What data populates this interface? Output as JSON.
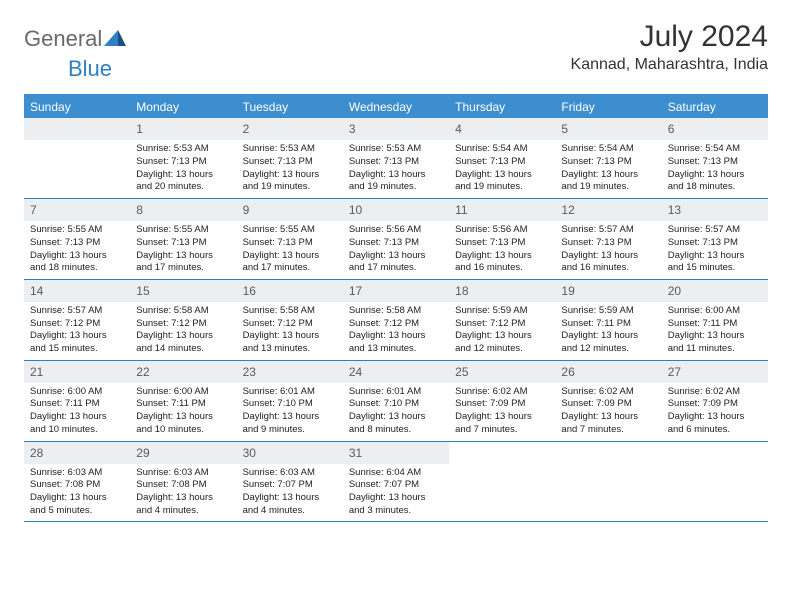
{
  "logo": {
    "text_part1": "General",
    "text_part2": "Blue"
  },
  "title": "July 2024",
  "subtitle": "Kannad, Maharashtra, India",
  "colors": {
    "header_bg": "#3c8ecf",
    "header_text": "#ffffff",
    "daynum_bg": "#eceff1",
    "border": "#2f7fc2",
    "text": "#222222",
    "logo_gray": "#6a6a6a",
    "logo_blue": "#2f7fc2"
  },
  "weekdays": [
    "Sunday",
    "Monday",
    "Tuesday",
    "Wednesday",
    "Thursday",
    "Friday",
    "Saturday"
  ],
  "line_prefixes": {
    "sunrise": "Sunrise: ",
    "sunset": "Sunset: ",
    "daylight": "Daylight: "
  },
  "weeks": [
    [
      {
        "day": "",
        "empty": true
      },
      {
        "day": "1",
        "sunrise": "5:53 AM",
        "sunset": "7:13 PM",
        "daylight": "13 hours and 20 minutes."
      },
      {
        "day": "2",
        "sunrise": "5:53 AM",
        "sunset": "7:13 PM",
        "daylight": "13 hours and 19 minutes."
      },
      {
        "day": "3",
        "sunrise": "5:53 AM",
        "sunset": "7:13 PM",
        "daylight": "13 hours and 19 minutes."
      },
      {
        "day": "4",
        "sunrise": "5:54 AM",
        "sunset": "7:13 PM",
        "daylight": "13 hours and 19 minutes."
      },
      {
        "day": "5",
        "sunrise": "5:54 AM",
        "sunset": "7:13 PM",
        "daylight": "13 hours and 19 minutes."
      },
      {
        "day": "6",
        "sunrise": "5:54 AM",
        "sunset": "7:13 PM",
        "daylight": "13 hours and 18 minutes."
      }
    ],
    [
      {
        "day": "7",
        "sunrise": "5:55 AM",
        "sunset": "7:13 PM",
        "daylight": "13 hours and 18 minutes."
      },
      {
        "day": "8",
        "sunrise": "5:55 AM",
        "sunset": "7:13 PM",
        "daylight": "13 hours and 17 minutes."
      },
      {
        "day": "9",
        "sunrise": "5:55 AM",
        "sunset": "7:13 PM",
        "daylight": "13 hours and 17 minutes."
      },
      {
        "day": "10",
        "sunrise": "5:56 AM",
        "sunset": "7:13 PM",
        "daylight": "13 hours and 17 minutes."
      },
      {
        "day": "11",
        "sunrise": "5:56 AM",
        "sunset": "7:13 PM",
        "daylight": "13 hours and 16 minutes."
      },
      {
        "day": "12",
        "sunrise": "5:57 AM",
        "sunset": "7:13 PM",
        "daylight": "13 hours and 16 minutes."
      },
      {
        "day": "13",
        "sunrise": "5:57 AM",
        "sunset": "7:13 PM",
        "daylight": "13 hours and 15 minutes."
      }
    ],
    [
      {
        "day": "14",
        "sunrise": "5:57 AM",
        "sunset": "7:12 PM",
        "daylight": "13 hours and 15 minutes."
      },
      {
        "day": "15",
        "sunrise": "5:58 AM",
        "sunset": "7:12 PM",
        "daylight": "13 hours and 14 minutes."
      },
      {
        "day": "16",
        "sunrise": "5:58 AM",
        "sunset": "7:12 PM",
        "daylight": "13 hours and 13 minutes."
      },
      {
        "day": "17",
        "sunrise": "5:58 AM",
        "sunset": "7:12 PM",
        "daylight": "13 hours and 13 minutes."
      },
      {
        "day": "18",
        "sunrise": "5:59 AM",
        "sunset": "7:12 PM",
        "daylight": "13 hours and 12 minutes."
      },
      {
        "day": "19",
        "sunrise": "5:59 AM",
        "sunset": "7:11 PM",
        "daylight": "13 hours and 12 minutes."
      },
      {
        "day": "20",
        "sunrise": "6:00 AM",
        "sunset": "7:11 PM",
        "daylight": "13 hours and 11 minutes."
      }
    ],
    [
      {
        "day": "21",
        "sunrise": "6:00 AM",
        "sunset": "7:11 PM",
        "daylight": "13 hours and 10 minutes."
      },
      {
        "day": "22",
        "sunrise": "6:00 AM",
        "sunset": "7:11 PM",
        "daylight": "13 hours and 10 minutes."
      },
      {
        "day": "23",
        "sunrise": "6:01 AM",
        "sunset": "7:10 PM",
        "daylight": "13 hours and 9 minutes."
      },
      {
        "day": "24",
        "sunrise": "6:01 AM",
        "sunset": "7:10 PM",
        "daylight": "13 hours and 8 minutes."
      },
      {
        "day": "25",
        "sunrise": "6:02 AM",
        "sunset": "7:09 PM",
        "daylight": "13 hours and 7 minutes."
      },
      {
        "day": "26",
        "sunrise": "6:02 AM",
        "sunset": "7:09 PM",
        "daylight": "13 hours and 7 minutes."
      },
      {
        "day": "27",
        "sunrise": "6:02 AM",
        "sunset": "7:09 PM",
        "daylight": "13 hours and 6 minutes."
      }
    ],
    [
      {
        "day": "28",
        "sunrise": "6:03 AM",
        "sunset": "7:08 PM",
        "daylight": "13 hours and 5 minutes."
      },
      {
        "day": "29",
        "sunrise": "6:03 AM",
        "sunset": "7:08 PM",
        "daylight": "13 hours and 4 minutes."
      },
      {
        "day": "30",
        "sunrise": "6:03 AM",
        "sunset": "7:07 PM",
        "daylight": "13 hours and 4 minutes."
      },
      {
        "day": "31",
        "sunrise": "6:04 AM",
        "sunset": "7:07 PM",
        "daylight": "13 hours and 3 minutes."
      },
      {
        "day": "",
        "trailing": true
      },
      {
        "day": "",
        "trailing": true
      },
      {
        "day": "",
        "trailing": true
      }
    ]
  ]
}
